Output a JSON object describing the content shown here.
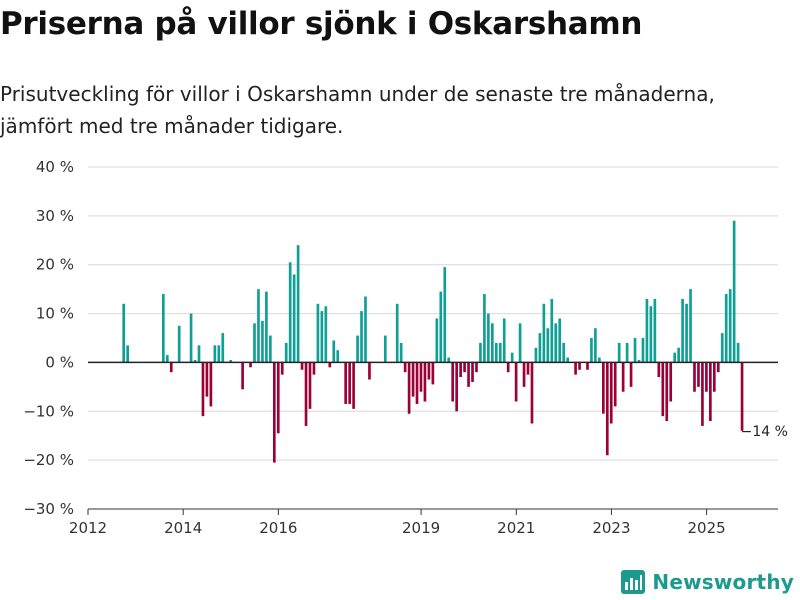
{
  "title": "Priserna på villor sjönk i Oskarshamn",
  "subtitle": "Prisutveckling för villor i Oskarshamn under de senaste tre månaderna, jämfört med tre månader tidigare.",
  "brand": "Newsworthy",
  "colors": {
    "positive": "#0f9f95",
    "negative": "#9b0037",
    "grid": "#d9d9d9"
  },
  "chart_data": {
    "type": "bar",
    "title": "Priserna på villor sjönk i Oskarshamn",
    "xlabel": "",
    "ylabel": "",
    "ylim": [
      -30,
      40
    ],
    "yticks": [
      -30,
      -20,
      -10,
      0,
      10,
      20,
      30,
      40
    ],
    "ytick_labels": [
      "−30 %",
      "−20 %",
      "−10 %",
      "0 %",
      "10 %",
      "20 %",
      "30 %",
      "40 %"
    ],
    "xticks": [
      2012,
      2014,
      2016,
      2019,
      2021,
      2023,
      2025
    ],
    "xtick_labels": [
      "2012",
      "2014",
      "2016",
      "2019",
      "2021",
      "2023",
      "2025"
    ],
    "x_start": 2012.0,
    "x_end": 2026.5,
    "bar_step": 0.0833,
    "series": [
      {
        "name": "Prisutveckling",
        "x_start": 2012.75,
        "values": [
          12,
          3.5,
          0,
          0,
          0,
          0,
          0,
          0,
          0,
          0,
          14,
          1.5,
          -2,
          0,
          7.5,
          0,
          0,
          10,
          0.5,
          3.5,
          -11,
          -7,
          -9,
          3.5,
          3.5,
          6,
          0,
          0.5,
          0,
          0,
          -5.5,
          0,
          -1,
          8,
          15,
          8.5,
          14.5,
          5.5,
          -20.5,
          -14.5,
          -2.5,
          4,
          20.5,
          18,
          24,
          -1.5,
          -13,
          -9.5,
          -2.5,
          12,
          10.5,
          11.5,
          -1,
          4.5,
          2.5,
          0,
          -8.5,
          -8.5,
          -9.5,
          5.5,
          10.5,
          13.5,
          -3.5,
          0,
          0,
          0,
          5.5,
          0,
          0,
          12,
          4,
          -2,
          -10.5,
          -7,
          -8.5,
          -6,
          -8,
          -3.5,
          -4.5,
          9,
          14.5,
          19.5,
          1,
          -8,
          -10,
          -3,
          -2,
          -5,
          -4,
          -2,
          4,
          14,
          10,
          8,
          4,
          4,
          9,
          -2,
          2,
          -8,
          8,
          -5,
          -2.5,
          -12.5,
          3,
          6,
          12,
          7,
          13,
          8,
          9,
          4,
          1,
          0,
          -2.5,
          -1.5,
          0,
          -1.5,
          5,
          7,
          1,
          -10.5,
          -19,
          -12.5,
          -9,
          4,
          -6,
          4,
          -5,
          5,
          0.5,
          5,
          13,
          11.5,
          13,
          -3,
          -11,
          -12,
          -8,
          2,
          3,
          13,
          12,
          15,
          -6,
          -5,
          -13,
          -6,
          -12,
          -6,
          -2,
          6,
          14,
          15,
          29,
          4,
          -14
        ]
      }
    ],
    "annotation": {
      "text": "−14 %",
      "x": 2025.75,
      "y": -14
    }
  }
}
